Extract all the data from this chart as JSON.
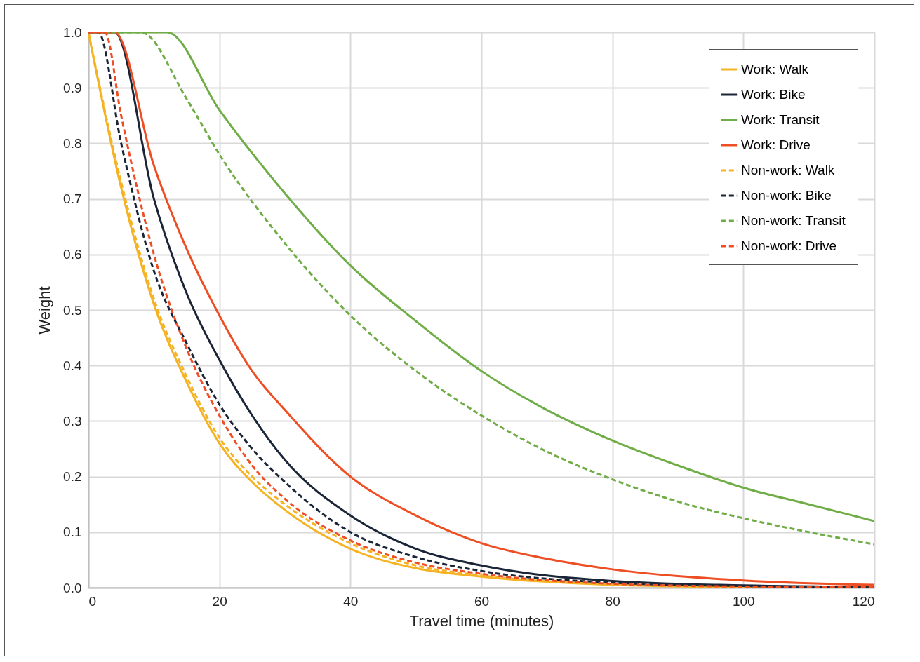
{
  "chart_data": {
    "type": "line",
    "xlabel": "Travel time (minutes)",
    "ylabel": "Weight",
    "xlim": [
      0,
      120
    ],
    "ylim": [
      0,
      1
    ],
    "xticks": [
      0,
      20,
      40,
      60,
      80,
      100,
      120
    ],
    "yticks": [
      {
        "value": 0,
        "label": "0.0"
      },
      0.1,
      0.2,
      0.3,
      0.4,
      0.5,
      0.6,
      0.7,
      0.8,
      0.9,
      {
        "value": 1,
        "label": "1.0"
      }
    ],
    "grid": true,
    "legend": "top right",
    "series": [
      {
        "name": "Work: Walk",
        "color": "#f5b324",
        "line_style": "solid",
        "x": [
          0,
          5,
          10,
          15,
          20,
          25,
          30,
          40,
          50,
          60,
          80,
          100,
          120
        ],
        "values": [
          1,
          0.72,
          0.51,
          0.37,
          0.26,
          0.19,
          0.14,
          0.07,
          0.035,
          0.02,
          0.005,
          0.001,
          0
        ]
      },
      {
        "name": "Work: Bike",
        "color": "#1a2538",
        "line_style": "solid",
        "x": [
          0,
          4,
          10,
          15,
          20,
          25,
          30,
          40,
          50,
          60,
          80,
          100,
          120
        ],
        "values": [
          1,
          1,
          0.7,
          0.53,
          0.41,
          0.31,
          0.23,
          0.13,
          0.07,
          0.04,
          0.012,
          0.004,
          0.001
        ]
      },
      {
        "name": "Work: Transit",
        "color": "#70ad47",
        "line_style": "solid",
        "x": [
          0,
          12,
          20,
          30,
          40,
          50,
          60,
          70,
          80,
          90,
          100,
          110,
          120
        ],
        "values": [
          1,
          1,
          0.86,
          0.71,
          0.58,
          0.48,
          0.39,
          0.32,
          0.265,
          0.22,
          0.18,
          0.15,
          0.12
        ]
      },
      {
        "name": "Work: Drive",
        "color": "#ee4e23",
        "line_style": "solid",
        "x": [
          0,
          4,
          10,
          15,
          20,
          25,
          30,
          40,
          50,
          60,
          70,
          80,
          100,
          120
        ],
        "values": [
          1,
          1,
          0.76,
          0.61,
          0.49,
          0.39,
          0.32,
          0.2,
          0.13,
          0.08,
          0.052,
          0.033,
          0.013,
          0.005
        ]
      },
      {
        "name": "Non-work: Walk",
        "color": "#f5b324",
        "line_style": "dashed",
        "x": [
          0,
          5,
          10,
          15,
          20,
          25,
          30,
          40,
          50,
          60,
          80,
          100,
          120
        ],
        "values": [
          1,
          0.73,
          0.52,
          0.38,
          0.27,
          0.2,
          0.15,
          0.08,
          0.04,
          0.022,
          0.006,
          0.002,
          0.001
        ]
      },
      {
        "name": "Non-work: Bike",
        "color": "#1a2538",
        "line_style": "dashed",
        "x": [
          0,
          1.5,
          5,
          10,
          15,
          20,
          25,
          30,
          40,
          50,
          60,
          80,
          100,
          120
        ],
        "values": [
          1,
          1,
          0.8,
          0.57,
          0.44,
          0.33,
          0.25,
          0.19,
          0.1,
          0.055,
          0.03,
          0.009,
          0.003,
          0.001
        ]
      },
      {
        "name": "Non-work: Transit",
        "color": "#70ad47",
        "line_style": "dashed",
        "x": [
          0,
          8,
          15,
          20,
          30,
          40,
          50,
          60,
          70,
          80,
          90,
          100,
          110,
          120
        ],
        "values": [
          1,
          1,
          0.88,
          0.78,
          0.62,
          0.49,
          0.39,
          0.31,
          0.245,
          0.195,
          0.155,
          0.125,
          0.1,
          0.078
        ]
      },
      {
        "name": "Non-work: Drive",
        "color": "#ee4e23",
        "line_style": "dashed",
        "x": [
          0,
          2.5,
          5,
          10,
          15,
          20,
          25,
          30,
          40,
          50,
          60,
          80,
          100,
          120
        ],
        "values": [
          1,
          1,
          0.85,
          0.6,
          0.43,
          0.31,
          0.22,
          0.16,
          0.085,
          0.045,
          0.025,
          0.007,
          0.002,
          0.001
        ]
      }
    ]
  }
}
